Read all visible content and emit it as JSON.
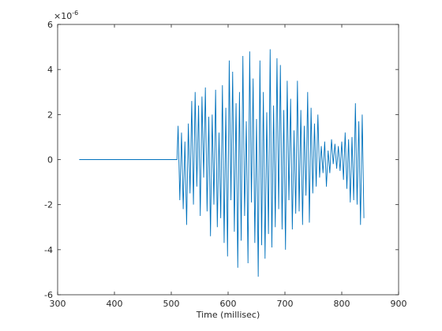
{
  "chart_data": {
    "type": "line",
    "xlabel": "Time (millisec)",
    "y_multiplier": "×10",
    "y_multiplier_exponent": "-6",
    "x": [
      338,
      510,
      512,
      515,
      518,
      521,
      524,
      527,
      530,
      533,
      536,
      539,
      542,
      545,
      548,
      551,
      554,
      557,
      560,
      563,
      566,
      569,
      572,
      575,
      578,
      581,
      584,
      587,
      590,
      593,
      596,
      599,
      602,
      605,
      608,
      611,
      614,
      617,
      620,
      623,
      626,
      629,
      632,
      635,
      638,
      641,
      644,
      647,
      650,
      653,
      656,
      659,
      662,
      665,
      668,
      671,
      674,
      677,
      680,
      683,
      686,
      689,
      692,
      695,
      698,
      701,
      704,
      707,
      710,
      713,
      716,
      719,
      722,
      725,
      728,
      731,
      734,
      737,
      740,
      743,
      746,
      749,
      752,
      755,
      758,
      761,
      764,
      767,
      770,
      773,
      776,
      779,
      782,
      785,
      788,
      791,
      794,
      797,
      800,
      803,
      806,
      809,
      812,
      815,
      818,
      821,
      824,
      827,
      830,
      833,
      836,
      839
    ],
    "series": [
      {
        "color": "#0072bd",
        "values": [
          0,
          0,
          1.5,
          -1.8,
          1.2,
          -2.2,
          0.8,
          -2.9,
          1.6,
          -1.5,
          2.6,
          -2.0,
          3.0,
          -1.2,
          2.4,
          -2.5,
          2.8,
          -0.8,
          3.2,
          -2.3,
          1.9,
          -3.4,
          2.0,
          -2.0,
          3.1,
          -3.0,
          1.2,
          -2.6,
          3.3,
          -3.7,
          2.3,
          -4.3,
          4.4,
          -1.8,
          3.9,
          -3.2,
          2.5,
          -4.8,
          3.0,
          -3.6,
          4.6,
          -2.5,
          1.7,
          -4.6,
          4.8,
          -1.9,
          3.6,
          -3.7,
          1.8,
          -5.2,
          4.4,
          -3.8,
          3.0,
          -4.4,
          2.1,
          -3.3,
          4.9,
          -3.9,
          2.4,
          -3.0,
          4.5,
          -2.2,
          4.2,
          -3.1,
          2.2,
          -4.0,
          3.5,
          -1.8,
          2.7,
          -3.1,
          1.3,
          -2.4,
          3.5,
          -2.3,
          2.2,
          -2.9,
          1.5,
          -1.6,
          3.0,
          -2.8,
          2.3,
          -1.5,
          1.6,
          -1.2,
          2.0,
          -0.8,
          0.6,
          -0.6,
          0.8,
          -1.2,
          0.4,
          -0.6,
          0.9,
          -0.2,
          0.7,
          -0.4,
          0.6,
          -0.5,
          0.8,
          -0.9,
          1.2,
          -1.3,
          0.9,
          -1.9,
          1.0,
          -1.8,
          2.5,
          -2.0,
          1.7,
          -2.9,
          2.0,
          -2.6
        ]
      }
    ],
    "xlim": [
      300,
      900
    ],
    "xticks": [
      300,
      400,
      500,
      600,
      700,
      800,
      900
    ],
    "ylim": [
      -6,
      6
    ],
    "yticks": [
      -6,
      -4,
      -2,
      0,
      2,
      4,
      6
    ]
  }
}
